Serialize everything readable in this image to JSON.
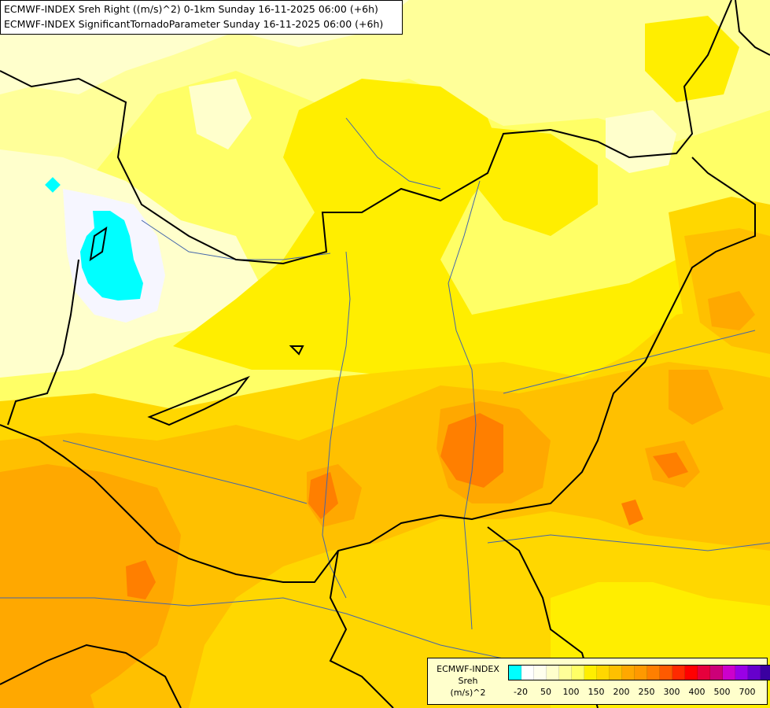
{
  "titles": {
    "line1": "ECMWF-INDEX Sreh Right ((m/s)^2) 0-1km Sunday 16-11-2025 06:00 (+6h)",
    "line2": "ECMWF-INDEX SignificantTornadoParameter Sunday 16-11-2025 06:00 (+6h)"
  },
  "legend": {
    "title_line1": "ECMWF-INDEX",
    "title_line2": "Sreh",
    "title_line3": "(m/s)^2",
    "colors": [
      "#00ffff",
      "#ffffff",
      "#ffffee",
      "#ffffcc",
      "#ffff99",
      "#ffff66",
      "#ffee00",
      "#ffd700",
      "#ffc000",
      "#ffa800",
      "#ff9900",
      "#ff7f00",
      "#ff5a00",
      "#ff2a00",
      "#ff0000",
      "#e6003c",
      "#cc0078",
      "#cc00cc",
      "#9900e6",
      "#6600cc",
      "#3a00a0",
      "#000080"
    ],
    "labels": [
      "-20",
      "50",
      "100",
      "150",
      "200",
      "250",
      "300",
      "400",
      "500",
      "700"
    ]
  },
  "map_colors": {
    "very_light": "#ffffcc",
    "light": "#ffff99",
    "pale_yellow": "#ffff66",
    "yellow": "#ffee00",
    "gold": "#ffd700",
    "orange_light": "#ffc000",
    "orange": "#ffa800",
    "orange_dark": "#ff9900",
    "red_orange": "#ff7f00",
    "near_white": "#f6f6ff",
    "cyan": "#00ffff",
    "border": "#000000",
    "river": "#4466aa"
  }
}
